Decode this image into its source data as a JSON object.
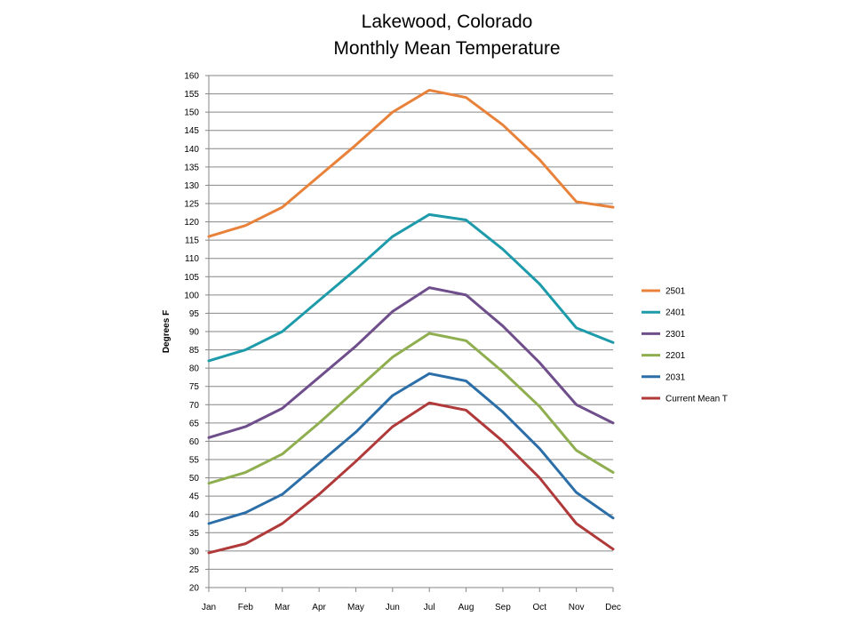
{
  "chart_data": {
    "type": "line",
    "title": "Lakewood, Colorado",
    "subtitle": "Monthly Mean Temperature",
    "xlabel": "",
    "ylabel": "Degrees F",
    "ylim": [
      20,
      160
    ],
    "ytick_step": 5,
    "grid": true,
    "legend_position": "right",
    "categories": [
      "Jan",
      "Feb",
      "Mar",
      "Apr",
      "May",
      "Jun",
      "Jul",
      "Aug",
      "Sep",
      "Oct",
      "Nov",
      "Dec"
    ],
    "series": [
      {
        "name": "2501",
        "color": "#E8823B",
        "values": [
          116,
          119,
          124,
          132.5,
          141,
          150,
          156,
          154,
          146.5,
          137,
          125.5,
          124
        ]
      },
      {
        "name": "2401",
        "color": "#1E9BAA",
        "values": [
          82,
          85,
          90,
          98.5,
          107,
          116,
          122,
          120.5,
          112.5,
          103,
          91,
          87
        ]
      },
      {
        "name": "2301",
        "color": "#6F4E8C",
        "values": [
          61,
          64,
          69,
          77.5,
          86,
          95.5,
          102,
          100,
          91.5,
          81.5,
          70,
          65
        ]
      },
      {
        "name": "2201",
        "color": "#8FAE4F",
        "values": [
          48.5,
          51.5,
          56.5,
          65,
          74,
          83,
          89.5,
          87.5,
          79,
          69.5,
          57.5,
          51.5
        ]
      },
      {
        "name": "2031",
        "color": "#2C6FA8",
        "values": [
          37.5,
          40.5,
          45.5,
          54,
          62.5,
          72.5,
          78.5,
          76.5,
          68,
          58,
          46,
          39
        ]
      },
      {
        "name": "Current Mean T",
        "color": "#B0393A",
        "values": [
          29.5,
          32,
          37.5,
          45.5,
          54.5,
          64,
          70.5,
          68.5,
          60,
          50,
          37.5,
          30.5
        ]
      }
    ]
  }
}
